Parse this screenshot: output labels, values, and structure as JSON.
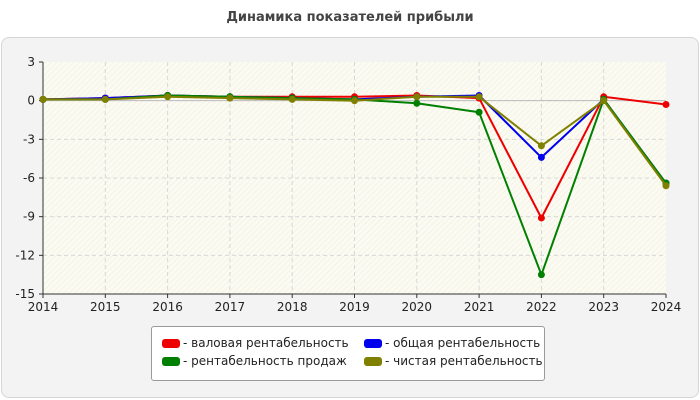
{
  "chart_data": {
    "type": "line",
    "title": "Динамика показателей прибыли",
    "xlabel": "",
    "ylabel": "",
    "categories": [
      "2014",
      "2015",
      "2016",
      "2017",
      "2018",
      "2019",
      "2020",
      "2021",
      "2022",
      "2023",
      "2024"
    ],
    "ylim": [
      -15,
      3
    ],
    "yticks": [
      "3",
      "0",
      "-3",
      "-6",
      "-9",
      "-12",
      "-15"
    ],
    "grid": true,
    "legend_position": "bottom",
    "series": [
      {
        "name": "- валовая рентабельность",
        "color": "#ee0000",
        "values": [
          0.1,
          0.2,
          0.4,
          0.3,
          0.3,
          0.3,
          0.4,
          0.2,
          -9.1,
          0.3,
          -0.3
        ]
      },
      {
        "name": "- общая рентабельность",
        "color": "#0000ee",
        "values": [
          0.1,
          0.2,
          0.4,
          0.3,
          0.2,
          0.1,
          0.3,
          0.4,
          -4.4,
          0.1,
          -6.4
        ]
      },
      {
        "name": "- рентабельность продаж",
        "color": "#008000",
        "values": [
          0.1,
          0.1,
          0.4,
          0.3,
          0.2,
          0.1,
          -0.2,
          -0.9,
          -13.5,
          0.1,
          -6.4
        ]
      },
      {
        "name": "- чистая рентабельность",
        "color": "#808000",
        "values": [
          0.1,
          0.1,
          0.3,
          0.2,
          0.1,
          0.0,
          0.3,
          0.3,
          -3.5,
          0.0,
          -6.6
        ]
      }
    ]
  }
}
